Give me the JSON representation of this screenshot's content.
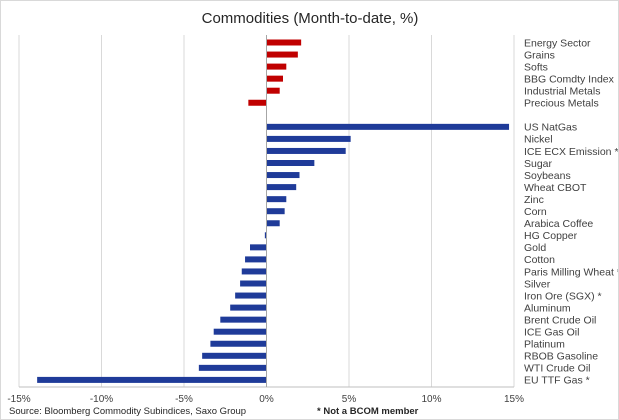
{
  "chart_data": {
    "type": "bar",
    "orientation": "horizontal",
    "title": "Commodities (Month-to-date, %)",
    "xlim": [
      -15,
      15
    ],
    "x_ticks": [
      "-15%",
      "-10%",
      "-5%",
      "0%",
      "5%",
      "10%",
      "15%"
    ],
    "grid": true,
    "groups": [
      {
        "color": "#c00000",
        "categories": [
          "Energy Sector",
          "Grains",
          "Softs",
          "BBG Comdty Index",
          "Industrial Metals",
          "Precious Metals"
        ],
        "values": [
          2.1,
          1.9,
          1.2,
          1.0,
          0.8,
          -1.1
        ]
      },
      {
        "color": "#1f3b99",
        "categories": [
          "US NatGas",
          "Nickel",
          "ICE ECX Emission *",
          "Sugar",
          "Soybeans",
          "Wheat CBOT",
          "Zinc",
          "Corn",
          "Arabica Coffee",
          "HG Copper",
          "Gold",
          "Cotton",
          "Paris Milling Wheat *",
          "Silver",
          "Iron Ore (SGX) *",
          "Aluminum",
          "Brent Crude Oil",
          "ICE Gas Oil",
          "Platinum",
          "RBOB Gasoline",
          "WTI Crude Oil",
          "EU TTF Gas *"
        ],
        "values": [
          14.7,
          5.1,
          4.8,
          2.9,
          2.0,
          1.8,
          1.2,
          1.1,
          0.8,
          -0.1,
          -1.0,
          -1.3,
          -1.5,
          -1.6,
          -1.9,
          -2.2,
          -2.8,
          -3.2,
          -3.4,
          -3.9,
          -4.1,
          -13.9
        ]
      }
    ]
  },
  "footer": {
    "source": "Source: Bloomberg Commodity Subindices, Saxo Group",
    "note": "* Not a BCOM member"
  }
}
